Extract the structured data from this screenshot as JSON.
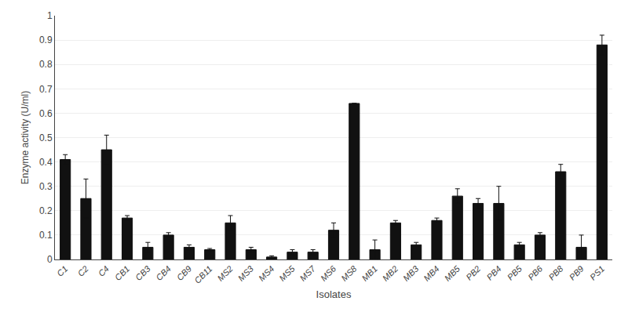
{
  "chart_data": {
    "type": "bar",
    "categories": [
      "C1",
      "C2",
      "C4",
      "CB1",
      "CB3",
      "CB4",
      "CB9",
      "CB11",
      "MS2",
      "MS3",
      "MS4",
      "MS5",
      "MS7",
      "MS6",
      "MS8",
      "MB1",
      "MB2",
      "MB3",
      "MB4",
      "MB5",
      "PB2",
      "PB4",
      "PB5",
      "PB6",
      "PB8",
      "PB9",
      "PS1"
    ],
    "values": [
      0.41,
      0.25,
      0.45,
      0.17,
      0.05,
      0.1,
      0.05,
      0.04,
      0.15,
      0.04,
      0.01,
      0.03,
      0.03,
      0.12,
      0.64,
      0.04,
      0.15,
      0.06,
      0.16,
      0.26,
      0.23,
      0.23,
      0.06,
      0.1,
      0.36,
      0.05,
      0.88
    ],
    "errors": [
      0.02,
      0.08,
      0.06,
      0.01,
      0.02,
      0.01,
      0.01,
      0.005,
      0.03,
      0.01,
      0.005,
      0.01,
      0.01,
      0.03,
      0.0,
      0.04,
      0.01,
      0.01,
      0.01,
      0.03,
      0.02,
      0.07,
      0.01,
      0.01,
      0.03,
      0.05,
      0.04
    ],
    "color": "#111111",
    "xlabel": "Isolates",
    "ylabel": "Enzyme activity (U/ml)",
    "ylim": [
      0,
      1.0
    ],
    "yticks": [
      0,
      0.1,
      0.2,
      0.3,
      0.4,
      0.5,
      0.6,
      0.7,
      0.8,
      0.9,
      1
    ],
    "grid": true
  }
}
